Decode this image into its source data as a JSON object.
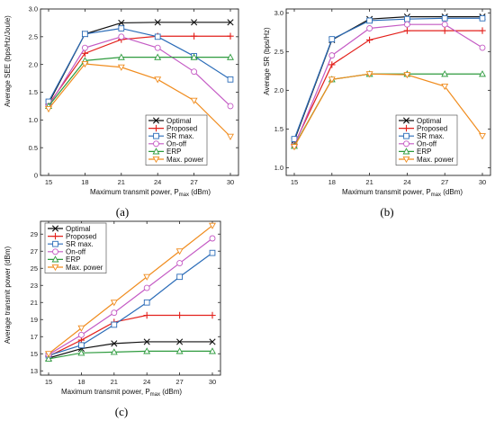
{
  "colors": {
    "Optimal": "#111111",
    "Proposed": "#e3211c",
    "SR max.": "#2b6cb8",
    "On-off": "#c45ac4",
    "ERP": "#2e9b3e",
    "Max. power": "#f08c1e"
  },
  "chart_data": [
    {
      "type": "line",
      "caption": "(a)",
      "ylabel": "Average SEE (bps/Hz/Joule)",
      "xlabel": {
        "main": "Maximum transmit power, P",
        "sub": "max",
        "unit": " (dBm)"
      },
      "x": [
        15,
        18,
        21,
        24,
        27,
        30
      ],
      "ylim": [
        0,
        3.0
      ],
      "yticks": [
        0,
        0.5,
        1.0,
        1.5,
        2.0,
        2.5,
        3.0
      ],
      "ytick_labels": [
        "0",
        "0.5",
        "1.0",
        "1.5",
        "2.0",
        "2.5",
        "3.0"
      ],
      "legend_position": "bottom-right",
      "series": [
        {
          "name": "Optimal",
          "marker": "x",
          "values": [
            1.3,
            2.55,
            2.75,
            2.76,
            2.76,
            2.76
          ]
        },
        {
          "name": "Proposed",
          "marker": "+",
          "values": [
            1.28,
            2.2,
            2.45,
            2.51,
            2.51,
            2.51
          ]
        },
        {
          "name": "SR max.",
          "marker": "square",
          "values": [
            1.33,
            2.55,
            2.65,
            2.5,
            2.15,
            1.73
          ]
        },
        {
          "name": "On-off",
          "marker": "circle",
          "values": [
            1.25,
            2.3,
            2.5,
            2.3,
            1.87,
            1.25
          ]
        },
        {
          "name": "ERP",
          "marker": "triangle",
          "values": [
            1.25,
            2.07,
            2.13,
            2.13,
            2.13,
            2.13
          ]
        },
        {
          "name": "Max. power",
          "marker": "tri-down",
          "values": [
            1.2,
            2.01,
            1.95,
            1.73,
            1.35,
            0.7
          ]
        }
      ]
    },
    {
      "type": "line",
      "caption": "(b)",
      "ylabel": "Average SR (bps/Hz)",
      "xlabel": {
        "main": "Maximum transmit power, P",
        "sub": "max",
        "unit": " (dBm)"
      },
      "x": [
        15,
        18,
        21,
        24,
        27,
        30
      ],
      "ylim": [
        0.9,
        3.05
      ],
      "yticks": [
        1.0,
        1.5,
        2.0,
        2.5,
        3.0
      ],
      "ytick_labels": [
        "1.0",
        "1.5",
        "2.0",
        "2.5",
        "3.0"
      ],
      "legend_position": "bottom-right",
      "series": [
        {
          "name": "Optimal",
          "marker": "x",
          "values": [
            1.35,
            2.65,
            2.92,
            2.95,
            2.95,
            2.95
          ]
        },
        {
          "name": "Proposed",
          "marker": "+",
          "values": [
            1.3,
            2.33,
            2.65,
            2.77,
            2.77,
            2.77
          ]
        },
        {
          "name": "SR max.",
          "marker": "square",
          "values": [
            1.37,
            2.66,
            2.9,
            2.92,
            2.93,
            2.93
          ]
        },
        {
          "name": "On-off",
          "marker": "circle",
          "values": [
            1.28,
            2.45,
            2.8,
            2.85,
            2.85,
            2.55
          ]
        },
        {
          "name": "ERP",
          "marker": "triangle",
          "values": [
            1.28,
            2.14,
            2.21,
            2.21,
            2.21,
            2.21
          ]
        },
        {
          "name": "Max. power",
          "marker": "tri-down",
          "values": [
            1.27,
            2.14,
            2.21,
            2.2,
            2.05,
            1.41
          ]
        }
      ]
    },
    {
      "type": "line",
      "caption": "(c)",
      "ylabel": "Average transmit power (dBm)",
      "xlabel": {
        "main": "Maximum transmit power, P",
        "sub": "max",
        "unit": " (dBm)"
      },
      "x": [
        15,
        18,
        21,
        24,
        27,
        30
      ],
      "ylim": [
        12.5,
        30.5
      ],
      "yticks": [
        13,
        15,
        17,
        19,
        21,
        23,
        25,
        27,
        29
      ],
      "ytick_labels": [
        "13",
        "15",
        "17",
        "19",
        "21",
        "23",
        "25",
        "27",
        "29"
      ],
      "legend_position": "top-left",
      "series": [
        {
          "name": "Optimal",
          "marker": "x",
          "values": [
            14.5,
            15.6,
            16.2,
            16.4,
            16.4,
            16.4
          ]
        },
        {
          "name": "Proposed",
          "marker": "+",
          "values": [
            14.7,
            16.6,
            18.7,
            19.5,
            19.5,
            19.5
          ]
        },
        {
          "name": "SR max.",
          "marker": "square",
          "values": [
            14.8,
            16.0,
            18.4,
            21.0,
            24.0,
            26.8
          ]
        },
        {
          "name": "On-off",
          "marker": "circle",
          "values": [
            14.9,
            17.2,
            19.8,
            22.7,
            25.6,
            28.5
          ]
        },
        {
          "name": "ERP",
          "marker": "triangle",
          "values": [
            14.4,
            15.1,
            15.2,
            15.3,
            15.3,
            15.3
          ]
        },
        {
          "name": "Max. power",
          "marker": "tri-down",
          "values": [
            15.0,
            18.0,
            21.0,
            24.0,
            27.0,
            30.0
          ]
        }
      ]
    }
  ]
}
